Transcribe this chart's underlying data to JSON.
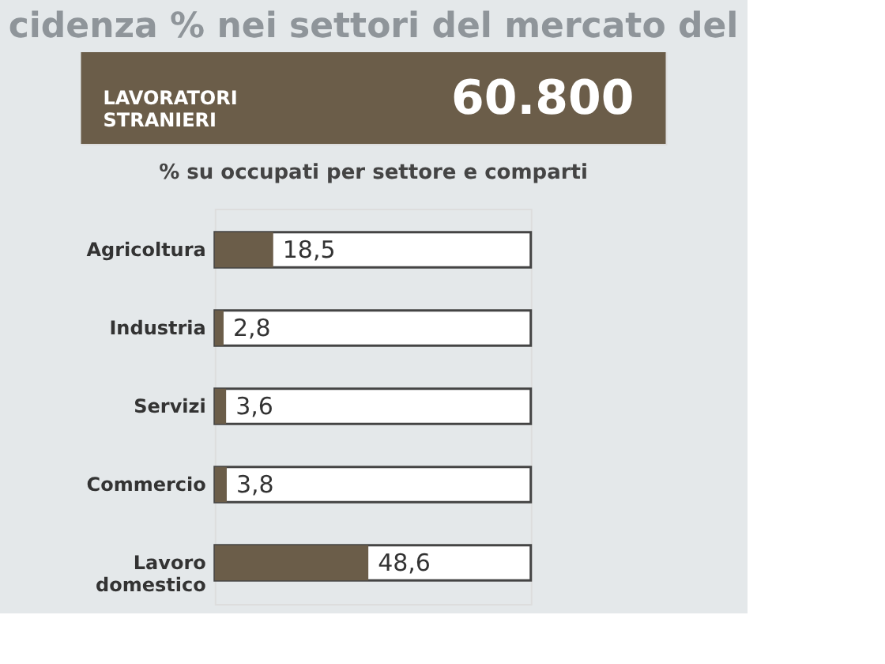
{
  "chart_data": {
    "type": "bar",
    "orientation": "horizontal",
    "title": "cidenza % nei settori del mercato del",
    "subtitle": "% su occupati per settore e comparti",
    "annotations": [
      "LAVORATORI\nSTRANIERI",
      "60.800"
    ],
    "categories": [
      "Agricoltura",
      "Industria",
      "Servizi",
      "Commercio",
      "Lavoro\ndomestico"
    ],
    "values": [
      18.5,
      2.8,
      3.6,
      3.8,
      48.6
    ],
    "value_labels": [
      "18,5",
      "2,8",
      "3,6",
      "3,8",
      "48,6"
    ],
    "color": "#6b5d49",
    "xlim": [
      0,
      100
    ],
    "tick_labels": "y"
  }
}
